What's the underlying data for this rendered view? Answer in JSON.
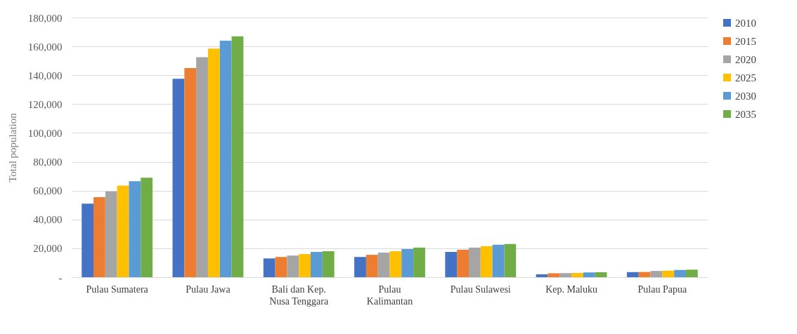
{
  "chart_data": {
    "type": "bar",
    "ylabel": "Total population",
    "categories": [
      "Pulau Sumatera",
      "Pulau Jawa",
      "Bali dan Kep. Nusa Tenggara",
      "Pulau Kalimantan",
      "Pulau Sulawesi",
      "Kep. Maluku",
      "Pulau Papua"
    ],
    "series": [
      {
        "name": "2010",
        "color": "#4472c4",
        "values": [
          51000,
          137500,
          13000,
          14000,
          17500,
          2000,
          3500
        ]
      },
      {
        "name": "2015",
        "color": "#ed7d31",
        "values": [
          55500,
          145000,
          14000,
          15500,
          19000,
          2700,
          3600
        ]
      },
      {
        "name": "2020",
        "color": "#a5a5a5",
        "values": [
          59500,
          152500,
          15000,
          17000,
          20500,
          2800,
          4300
        ]
      },
      {
        "name": "2025",
        "color": "#ffc000",
        "values": [
          63500,
          158500,
          16000,
          18000,
          21500,
          2900,
          4500
        ]
      },
      {
        "name": "2030",
        "color": "#5b9bd5",
        "values": [
          66500,
          164000,
          17500,
          19500,
          22500,
          3300,
          5000
        ]
      },
      {
        "name": "2035",
        "color": "#70ad47",
        "values": [
          69000,
          167000,
          18000,
          20500,
          23000,
          3400,
          5200
        ]
      }
    ],
    "ylim": [
      0,
      180000
    ],
    "yticks": [
      {
        "value": 0,
        "label": "-"
      },
      {
        "value": 20000,
        "label": "20,000"
      },
      {
        "value": 40000,
        "label": "40,000"
      },
      {
        "value": 60000,
        "label": "60,000"
      },
      {
        "value": 80000,
        "label": "80,000"
      },
      {
        "value": 100000,
        "label": "100,000"
      },
      {
        "value": 120000,
        "label": "120,000"
      },
      {
        "value": 140000,
        "label": "140,000"
      },
      {
        "value": 160000,
        "label": "160,000"
      },
      {
        "value": 180000,
        "label": "180,000"
      }
    ],
    "grid": "y",
    "legend": "right"
  }
}
